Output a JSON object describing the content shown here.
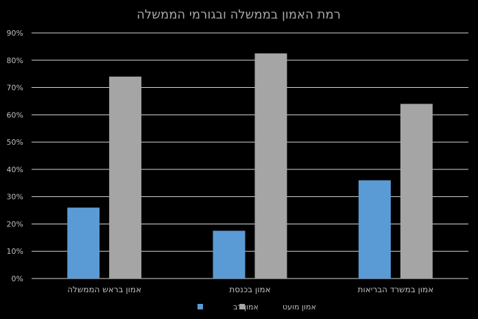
{
  "chart_data": {
    "type": "bar",
    "title": "רמת האמון  בממשלה ובגורמי הממשלה",
    "categories": [
      "אמון בראש הממשלה",
      "אמון בכנסת",
      "אמון במשרד הבריאות"
    ],
    "series": [
      {
        "name": "אמון רב",
        "values": [
          26,
          17.5,
          36
        ],
        "color": "#5b9bd5"
      },
      {
        "name": "אמון מועט",
        "values": [
          74,
          82.5,
          64
        ],
        "color": "#a5a5a5"
      }
    ],
    "ylim": [
      0,
      90
    ],
    "yticks": [
      0,
      10,
      20,
      30,
      40,
      50,
      60,
      70,
      80,
      90
    ],
    "ytick_labels": [
      "0%",
      "10%",
      "20%",
      "30%",
      "40%",
      "50%",
      "60%",
      "70%",
      "80%",
      "90%"
    ],
    "grid": true,
    "legend_position": "bottom"
  }
}
